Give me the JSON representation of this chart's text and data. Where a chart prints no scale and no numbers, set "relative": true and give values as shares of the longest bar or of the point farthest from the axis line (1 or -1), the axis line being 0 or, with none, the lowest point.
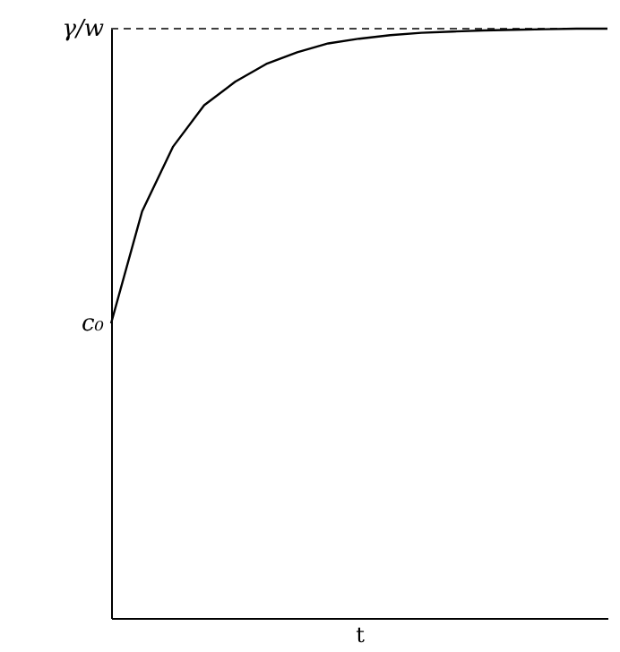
{
  "chart_data": {
    "type": "line",
    "relative": true,
    "xlabel": "t",
    "categories": [
      null,
      null,
      null,
      null,
      null,
      null,
      null,
      null,
      null,
      null,
      null,
      null,
      null,
      null,
      null,
      null,
      null
    ],
    "series": [
      {
        "color": "#000000",
        "values": [
          0.5,
          0.69,
          0.8,
          0.87,
          0.91,
          0.94,
          0.96,
          0.975,
          0.983,
          0.989,
          0.993,
          0.995,
          0.997,
          0.998,
          0.999,
          1,
          1
        ]
      }
    ],
    "ref_lines": [
      {
        "axis": "y",
        "value": 1,
        "label": "γ/w",
        "line_style": "dashed",
        "color": "#000000"
      }
    ],
    "annotations": [
      "c₀"
    ],
    "grid": false,
    "marker": "none",
    "line_style": "solid"
  }
}
